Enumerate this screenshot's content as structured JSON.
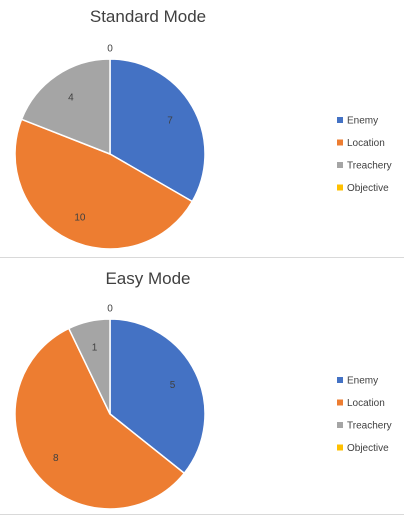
{
  "chart_data": [
    {
      "type": "pie",
      "title": "Standard Mode",
      "categories": [
        "Enemy",
        "Location",
        "Treachery",
        "Objective"
      ],
      "values": [
        7,
        10,
        4,
        0
      ],
      "legend_position": "right",
      "colors": [
        "#4472C4",
        "#ED7D31",
        "#A5A5A5",
        "#FFC000"
      ]
    },
    {
      "type": "pie",
      "title": "Easy Mode",
      "categories": [
        "Enemy",
        "Location",
        "Treachery",
        "Objective"
      ],
      "values": [
        5,
        8,
        1,
        0
      ],
      "legend_position": "right",
      "colors": [
        "#4472C4",
        "#ED7D31",
        "#A5A5A5",
        "#FFC000"
      ]
    }
  ]
}
